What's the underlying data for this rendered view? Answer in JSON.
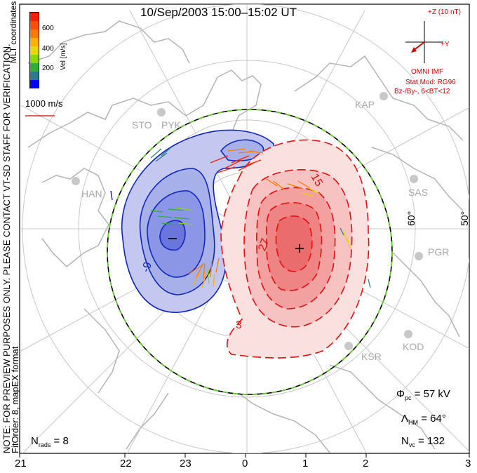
{
  "title": "10/Sep/2003 15:00–15:02 UT",
  "side_note_1": "NOTE: FOR PREVIEW PURPOSES ONLY. PLEASE CONTACT VT-SD STAFF FOR VERIFICATION.",
  "side_note_2": "FitOrder: 8, mapEX format",
  "coords_label": "MLT coordinates",
  "velocity_scale": {
    "unit_label": "Vel [m/s]",
    "ticks": [
      "600",
      "400",
      "200"
    ],
    "colors": [
      "#ff2000",
      "#ff7a00",
      "#ffb000",
      "#e6d800",
      "#8ad800",
      "#2eb030",
      "#2a7d8c",
      "#2a3cd8",
      "#0000ff"
    ]
  },
  "reference_vector": "1000 m/s",
  "imf": {
    "scale_label": "+Z (10 nT)",
    "y_label": "+Y",
    "source": "OMNI IMF",
    "model": "Stat Mod: RG96",
    "condition": "Bz-/By-, 6<BT<12"
  },
  "stats": {
    "phi_pc_label": "Φ",
    "phi_pc_sub": "pc",
    "phi_pc_value": "= 57 kV",
    "lambda_hm_label": "Λ",
    "lambda_hm_sub": "HM",
    "lambda_hm_value": "= 64°",
    "n_vc_label": "N",
    "n_vc_sub": "vc",
    "n_vc_value": "= 132",
    "n_rads_label": "N",
    "n_rads_sub": "rads",
    "n_rads_value": "= 8"
  },
  "mlt_ticks": [
    "21",
    "22",
    "23",
    "0",
    "1",
    "2",
    "3"
  ],
  "lat_labels": [
    "60°",
    "50°"
  ],
  "contour_labels": {
    "negative": [
      "-9"
    ],
    "positive": [
      "3",
      "15",
      "27"
    ],
    "min_marker": "−",
    "max_marker": "+"
  },
  "radar_sites": [
    "STO",
    "PYK",
    "HAN",
    "KAP",
    "SAS",
    "PGR",
    "KOD",
    "KSR"
  ],
  "colors": {
    "negative_contour": "#1028b8",
    "negative_fill": "#8c96e6",
    "positive_contour": "#e01010",
    "positive_fill": "#f07878",
    "coastline": "#b4b4b4",
    "grid": "#c8c8c8",
    "imf": "#d00000",
    "boundary_green": "#66cc33"
  }
}
